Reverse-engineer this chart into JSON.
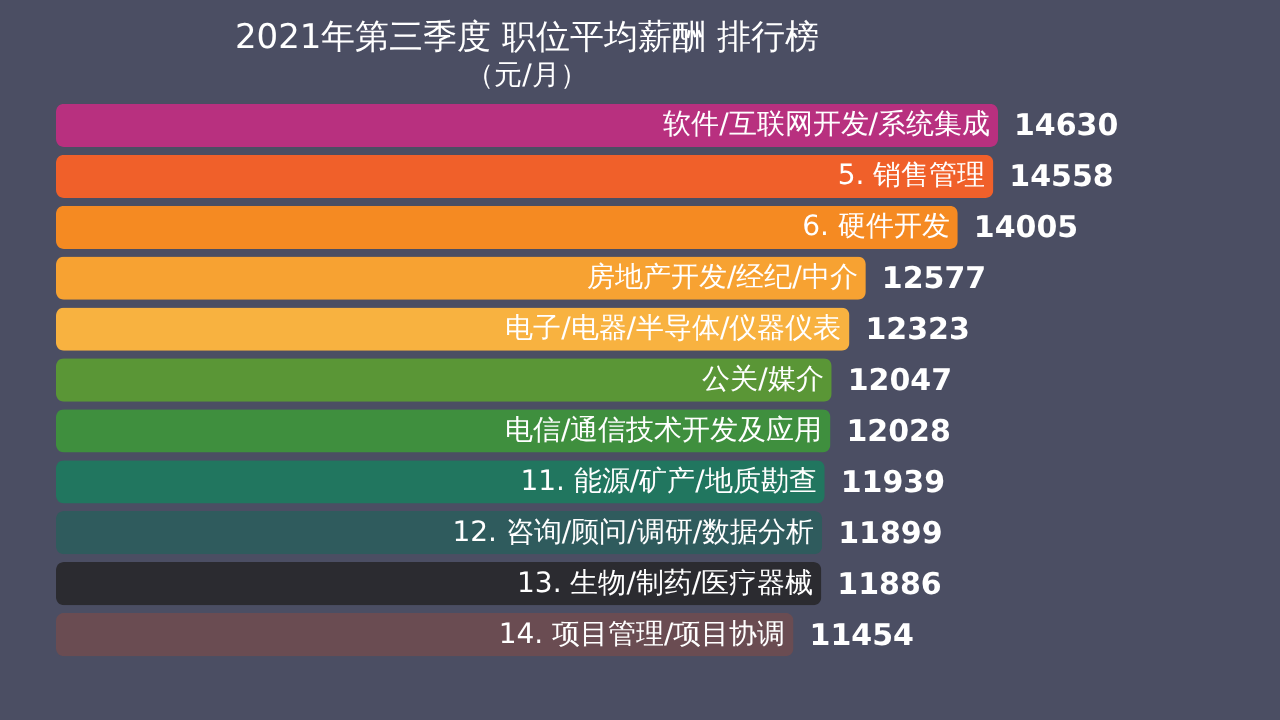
{
  "chart_data": {
    "type": "bar",
    "orientation": "horizontal",
    "title": "2021年第三季度 职位平均薪酬 排行榜",
    "subtitle": "（元/月）",
    "categories": [
      "软件/互联网开发/系统集成",
      "5. 销售管理",
      "6. 硬件开发",
      "房地产开发/经纪/中介",
      "电子/电器/半导体/仪器仪表",
      "公关/媒介",
      "电信/通信技术开发及应用",
      "11. 能源/矿产/地质勘查",
      "12. 咨询/顾问/调研/数据分析",
      "13. 生物/制药/医疗器械",
      "14. 项目管理/项目协调"
    ],
    "values": [
      14630,
      14558,
      14005,
      12577,
      12323,
      12047,
      12028,
      11939,
      11899,
      11886,
      11454
    ],
    "colors": [
      "#b8307f",
      "#f0602a",
      "#f58a22",
      "#f7a232",
      "#f8b240",
      "#5a9636",
      "#3f8f3e",
      "#21765f",
      "#2f5b5d",
      "#2b2b30",
      "#6a4c52"
    ],
    "data_labels": true,
    "tick_labels": false
  }
}
